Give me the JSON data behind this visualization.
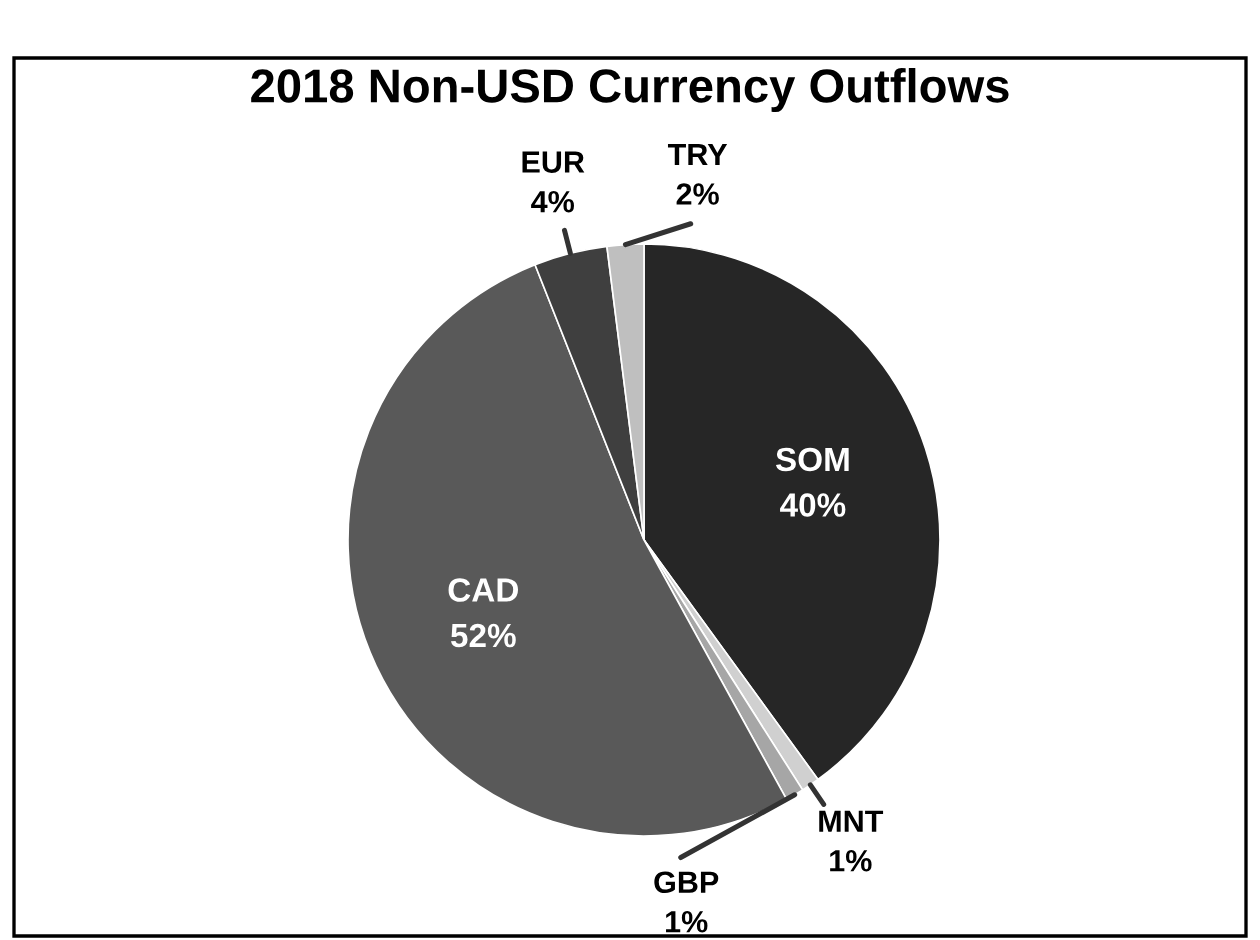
{
  "chart_data": {
    "type": "pie",
    "title": "2018 Non-USD Currency Outflows",
    "categories": [
      "SOM",
      "MNT",
      "GBP",
      "CAD",
      "EUR",
      "TRY"
    ],
    "values": [
      40,
      1,
      1,
      52,
      4,
      2
    ],
    "value_labels": [
      "40%",
      "1%",
      "1%",
      "52%",
      "4%",
      "2%"
    ],
    "colors": [
      "#262626",
      "#d0d0d0",
      "#a6a6a6",
      "#595959",
      "#3f3f3f",
      "#bfbfbf"
    ],
    "legend": false
  }
}
